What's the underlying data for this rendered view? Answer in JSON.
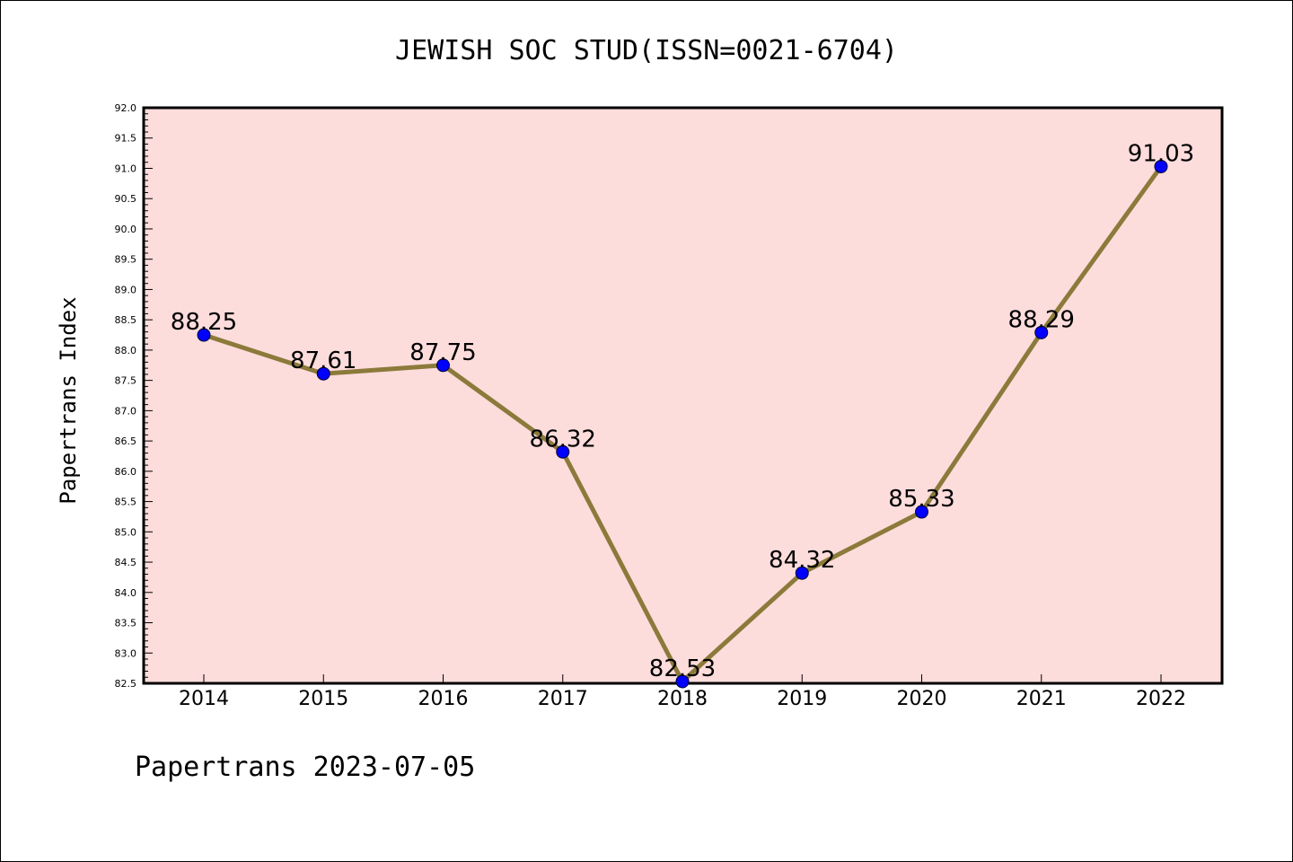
{
  "chart_data": {
    "type": "line",
    "title": "JEWISH SOC STUD(ISSN=0021-6704)",
    "xlabel": "",
    "ylabel": "Papertrans Index",
    "footer": "Papertrans 2023-07-05",
    "categories": [
      "2014",
      "2015",
      "2016",
      "2017",
      "2018",
      "2019",
      "2020",
      "2021",
      "2022"
    ],
    "values": [
      88.25,
      87.61,
      87.75,
      86.32,
      82.53,
      84.32,
      85.33,
      88.29,
      91.03
    ],
    "data_labels": [
      "88.25",
      "87.61",
      "87.75",
      "86.32",
      "82.53",
      "84.32",
      "85.33",
      "88.29",
      "91.03"
    ],
    "yticks": [
      "82.5",
      "83.0",
      "83.5",
      "84.0",
      "84.5",
      "85.0",
      "85.5",
      "86.0",
      "86.5",
      "87.0",
      "87.5",
      "88.0",
      "88.5",
      "89.0",
      "89.5",
      "90.0",
      "90.5",
      "91.0",
      "91.5",
      "92.0"
    ],
    "ylim": [
      82.5,
      92.0
    ],
    "grid": false,
    "colors": {
      "plot_background": "#fddcdc",
      "line": "#8b7a3a",
      "marker": "#0000ff",
      "axes": "#000000"
    }
  }
}
